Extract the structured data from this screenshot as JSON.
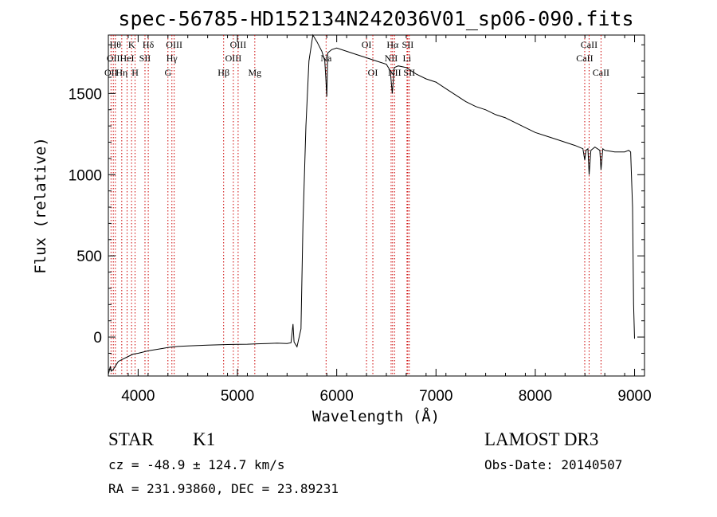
{
  "chart_data": {
    "type": "line",
    "title": "spec-56785-HD152134N242036V01_sp06-090.fits",
    "xlabel": "Wavelength (Å)",
    "ylabel": "Flux (relative)",
    "xlim": [
      3700,
      9100
    ],
    "ylim": [
      -240,
      1860
    ],
    "xticks": [
      4000,
      5000,
      6000,
      7000,
      8000,
      9000
    ],
    "xticklabels": [
      "4000",
      "5000",
      "6000",
      "7000",
      "8000",
      "9000"
    ],
    "yticks": [
      0,
      500,
      1000,
      1500
    ],
    "yticklabels": [
      "0",
      "500",
      "1000",
      "1500"
    ],
    "series": [
      {
        "name": "spectrum",
        "x": [
          3700,
          3720,
          3730,
          3750,
          3780,
          3800,
          3850,
          3900,
          3950,
          4000,
          4100,
          4200,
          4300,
          4400,
          4500,
          4600,
          4700,
          4800,
          4900,
          5000,
          5100,
          5200,
          5300,
          5400,
          5500,
          5540,
          5560,
          5570,
          5580,
          5600,
          5640,
          5660,
          5690,
          5720,
          5760,
          5800,
          5850,
          5880,
          5890,
          5900,
          5910,
          5950,
          6000,
          6100,
          6200,
          6300,
          6400,
          6500,
          6540,
          6560,
          6580,
          6620,
          6700,
          6800,
          6900,
          7000,
          7100,
          7200,
          7300,
          7400,
          7500,
          7600,
          7700,
          7800,
          7900,
          8000,
          8100,
          8200,
          8300,
          8400,
          8480,
          8498,
          8510,
          8530,
          8542,
          8560,
          8600,
          8650,
          8662,
          8680,
          8700,
          8800,
          8900,
          8940,
          8960,
          8980,
          8990,
          9000
        ],
        "y": [
          -230,
          -180,
          -210,
          -200,
          -170,
          -150,
          -135,
          -120,
          -105,
          -100,
          -85,
          -75,
          -65,
          -58,
          -55,
          -52,
          -50,
          -48,
          -46,
          -45,
          -44,
          -42,
          -40,
          -38,
          -40,
          -35,
          80,
          -30,
          -40,
          -60,
          50,
          700,
          1300,
          1700,
          1860,
          1820,
          1760,
          1700,
          1600,
          1480,
          1750,
          1770,
          1780,
          1760,
          1740,
          1720,
          1700,
          1680,
          1640,
          1500,
          1660,
          1670,
          1660,
          1620,
          1590,
          1570,
          1530,
          1490,
          1450,
          1420,
          1400,
          1370,
          1350,
          1320,
          1290,
          1260,
          1240,
          1220,
          1200,
          1180,
          1160,
          1090,
          1150,
          1160,
          1000,
          1150,
          1170,
          1150,
          1030,
          1160,
          1150,
          1140,
          1140,
          1150,
          1140,
          800,
          200,
          -10
        ]
      }
    ],
    "spectral_lines": [
      {
        "wl": 3727,
        "label": "OII",
        "row": 3
      },
      {
        "wl": 3750,
        "label": "OII",
        "row": 2
      },
      {
        "wl": 3771,
        "label": "Hθ",
        "row": 1
      },
      {
        "wl": 3835,
        "label": "Hη",
        "row": 3
      },
      {
        "wl": 3889,
        "label": "HeI",
        "row": 2
      },
      {
        "wl": 3934,
        "label": "K",
        "row": 1
      },
      {
        "wl": 3969,
        "label": "H",
        "row": 3
      },
      {
        "wl": 4069,
        "label": "SII",
        "row": 2
      },
      {
        "wl": 4102,
        "label": "Hδ",
        "row": 1
      },
      {
        "wl": 4300,
        "label": "G",
        "row": 3
      },
      {
        "wl": 4340,
        "label": "Hγ",
        "row": 2
      },
      {
        "wl": 4363,
        "label": "OIII",
        "row": 1
      },
      {
        "wl": 4861,
        "label": "Hβ",
        "row": 3
      },
      {
        "wl": 4959,
        "label": "OIII",
        "row": 2
      },
      {
        "wl": 5007,
        "label": "OIII",
        "row": 1
      },
      {
        "wl": 5175,
        "label": "Mg",
        "row": 3
      },
      {
        "wl": 5893,
        "label": "Na",
        "row": 2
      },
      {
        "wl": 6300,
        "label": "OI",
        "row": 1
      },
      {
        "wl": 6364,
        "label": "OI",
        "row": 3
      },
      {
        "wl": 6548,
        "label": "NII",
        "row": 2
      },
      {
        "wl": 6563,
        "label": "Hα",
        "row": 1
      },
      {
        "wl": 6583,
        "label": "NII",
        "row": 3
      },
      {
        "wl": 6708,
        "label": "Li",
        "row": 2
      },
      {
        "wl": 6716,
        "label": "SII",
        "row": 1
      },
      {
        "wl": 6731,
        "label": "SII",
        "row": 3
      },
      {
        "wl": 8498,
        "label": "CaII",
        "row": 2
      },
      {
        "wl": 8542,
        "label": "CaII",
        "row": 1
      },
      {
        "wl": 8662,
        "label": "CaII",
        "row": 3
      }
    ]
  },
  "info": {
    "class": "STAR",
    "subclass": "K1",
    "cz": "cz = -48.9 ± 124.7 km/s",
    "radec": "RA = 231.93860, DEC =  23.89231",
    "survey": "LAMOST DR3",
    "obs_date": "Obs-Date: 20140507"
  },
  "colors": {
    "spectrum": "#000000",
    "lines": "#cc0000",
    "axes": "#000000"
  }
}
